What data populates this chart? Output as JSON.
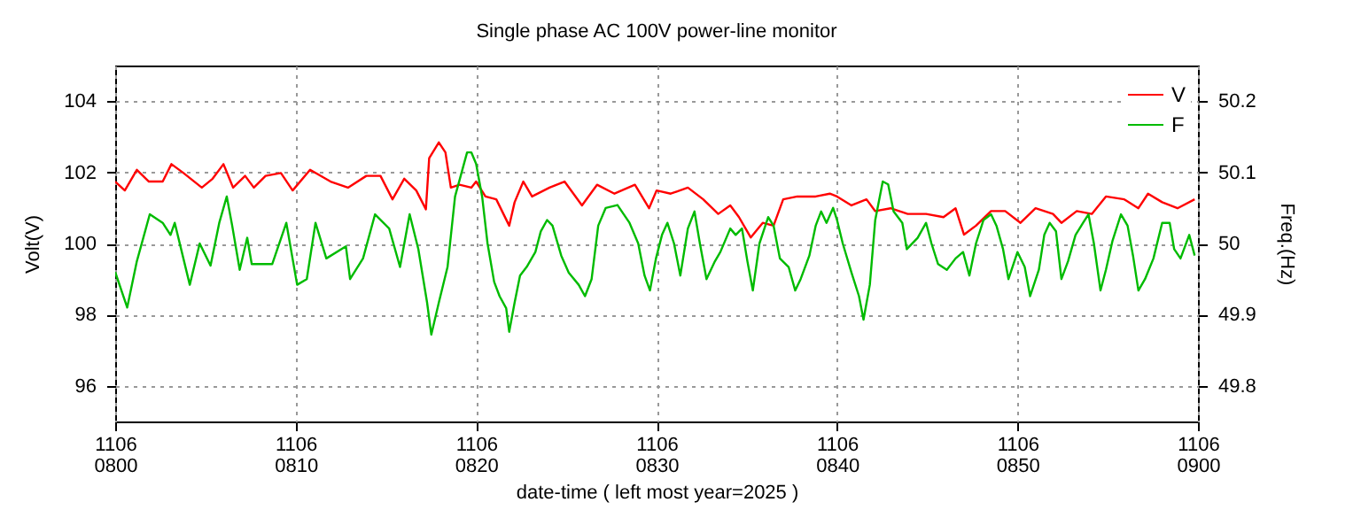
{
  "chart_data": {
    "type": "line",
    "title": "Single phase AC 100V power-line monitor",
    "xlabel": "date-time ( left most year=2025 )",
    "ylabel": "Volt(V)",
    "y2label": "Freq.(Hz)",
    "xlim": [
      "2025-11-06T08:00",
      "2025-11-06T09:00"
    ],
    "xticks": [
      {
        "value": "2025-11-06T08:00",
        "label": "1106\n0800"
      },
      {
        "value": "2025-11-06T08:10",
        "label": "1106\n0810"
      },
      {
        "value": "2025-11-06T08:20",
        "label": "1106\n0820"
      },
      {
        "value": "2025-11-06T08:30",
        "label": "1106\n0830"
      },
      {
        "value": "2025-11-06T08:40",
        "label": "1106\n0840"
      },
      {
        "value": "2025-11-06T08:50",
        "label": "1106\n0850"
      },
      {
        "value": "2025-11-06T09:00",
        "label": "1106\n0900"
      }
    ],
    "ylim": [
      95,
      105
    ],
    "yticks": [
      96,
      98,
      100,
      102,
      104
    ],
    "y2lim": [
      49.75,
      50.25
    ],
    "y2ticks": [
      49.8,
      49.9,
      50,
      50.1,
      50.2
    ],
    "grid": true,
    "legend": "top right",
    "series": [
      {
        "name": "V",
        "color": "#ff0000",
        "x": [
          "2025-11-06T08:00:00",
          "2025-11-06T08:00:32",
          "2025-11-06T08:01:12",
          "2025-11-06T08:01:52",
          "2025-11-06T08:02:38",
          "2025-11-06T08:03:07",
          "2025-11-06T08:03:47",
          "2025-11-06T08:04:48",
          "2025-11-06T08:05:24",
          "2025-11-06T08:06:00",
          "2025-11-06T08:06:32",
          "2025-11-06T08:07:12",
          "2025-11-06T08:07:41",
          "2025-11-06T08:08:20",
          "2025-11-06T08:09:11",
          "2025-11-06T08:09:50",
          "2025-11-06T08:10:48",
          "2025-11-06T08:11:56",
          "2025-11-06T08:12:54",
          "2025-11-06T08:13:55",
          "2025-11-06T08:14:42",
          "2025-11-06T08:15:22",
          "2025-11-06T08:16:01",
          "2025-11-06T08:16:41",
          "2025-11-06T08:17:13",
          "2025-11-06T08:17:24",
          "2025-11-06T08:17:56",
          "2025-11-06T08:18:18",
          "2025-11-06T08:18:36",
          "2025-11-06T08:19:05",
          "2025-11-06T08:19:44",
          "2025-11-06T08:20:00",
          "2025-11-06T08:20:31",
          "2025-11-06T08:21:07",
          "2025-11-06T08:21:50",
          "2025-11-06T08:22:08",
          "2025-11-06T08:22:37",
          "2025-11-06T08:23:06",
          "2025-11-06T08:24:04",
          "2025-11-06T08:24:54",
          "2025-11-06T08:25:52",
          "2025-11-06T08:26:42",
          "2025-11-06T08:27:40",
          "2025-11-06T08:28:48",
          "2025-11-06T08:29:35",
          "2025-11-06T08:30:00",
          "2025-11-06T08:30:47",
          "2025-11-06T08:31:44",
          "2025-11-06T08:32:35",
          "2025-11-06T08:33:25",
          "2025-11-06T08:34:05",
          "2025-11-06T08:34:34",
          "2025-11-06T08:35:13",
          "2025-11-06T08:35:53",
          "2025-11-06T08:36:29",
          "2025-11-06T08:37:01",
          "2025-11-06T08:37:48",
          "2025-11-06T08:38:49",
          "2025-11-06T08:39:36",
          "2025-11-06T08:40:00",
          "2025-11-06T08:40:48",
          "2025-11-06T08:41:38",
          "2025-11-06T08:42:07",
          "2025-11-06T08:42:58",
          "2025-11-06T08:43:55",
          "2025-11-06T08:44:56",
          "2025-11-06T08:45:54",
          "2025-11-06T08:46:34",
          "2025-11-06T08:47:02",
          "2025-11-06T08:47:42",
          "2025-11-06T08:48:32",
          "2025-11-06T08:49:19",
          "2025-11-06T08:50:10",
          "2025-11-06T08:51:00",
          "2025-11-06T08:51:58",
          "2025-11-06T08:52:26",
          "2025-11-06T08:53:17",
          "2025-11-06T08:54:07",
          "2025-11-06T08:54:54",
          "2025-11-06T08:55:55",
          "2025-11-06T08:56:42",
          "2025-11-06T08:57:14",
          "2025-11-06T08:58:01",
          "2025-11-06T08:58:52",
          "2025-11-06T08:59:49"
        ],
        "values": [
          101.74,
          101.49,
          102.07,
          101.74,
          101.74,
          102.23,
          101.98,
          101.57,
          101.82,
          102.23,
          101.57,
          101.9,
          101.57,
          101.9,
          101.98,
          101.49,
          102.07,
          101.74,
          101.57,
          101.9,
          101.9,
          101.24,
          101.82,
          101.49,
          100.96,
          102.4,
          102.84,
          102.56,
          101.57,
          101.65,
          101.57,
          101.74,
          101.32,
          101.24,
          100.5,
          101.16,
          101.74,
          101.32,
          101.57,
          101.74,
          101.07,
          101.65,
          101.4,
          101.65,
          100.99,
          101.49,
          101.4,
          101.57,
          101.24,
          100.83,
          101.07,
          100.74,
          100.17,
          100.58,
          100.5,
          101.24,
          101.32,
          101.32,
          101.4,
          101.32,
          101.07,
          101.24,
          100.91,
          100.99,
          100.83,
          100.83,
          100.74,
          100.99,
          100.25,
          100.5,
          100.91,
          100.91,
          100.58,
          100.99,
          100.83,
          100.58,
          100.91,
          100.83,
          101.32,
          101.24,
          100.99,
          101.4,
          101.16,
          100.99,
          101.24
        ]
      },
      {
        "name": "F",
        "color": "#00bb00",
        "axis": "y2",
        "x": [
          "2025-11-06T08:00:00",
          "2025-11-06T08:00:40",
          "2025-11-06T08:01:12",
          "2025-11-06T08:01:55",
          "2025-11-06T08:02:38",
          "2025-11-06T08:03:04",
          "2025-11-06T08:03:18",
          "2025-11-06T08:04:08",
          "2025-11-06T08:04:41",
          "2025-11-06T08:05:17",
          "2025-11-06T08:05:46",
          "2025-11-06T08:06:11",
          "2025-11-06T08:06:29",
          "2025-11-06T08:06:54",
          "2025-11-06T08:07:19",
          "2025-11-06T08:07:34",
          "2025-11-06T08:08:42",
          "2025-11-06T08:09:29",
          "2025-11-06T08:10:05",
          "2025-11-06T08:10:37",
          "2025-11-06T08:11:06",
          "2025-11-06T08:11:42",
          "2025-11-06T08:12:47",
          "2025-11-06T08:13:01",
          "2025-11-06T08:13:44",
          "2025-11-06T08:14:24",
          "2025-11-06T08:15:11",
          "2025-11-06T08:15:47",
          "2025-11-06T08:16:19",
          "2025-11-06T08:16:48",
          "2025-11-06T08:17:17",
          "2025-11-06T08:17:31",
          "2025-11-06T08:17:56",
          "2025-11-06T08:18:25",
          "2025-11-06T08:18:50",
          "2025-11-06T08:19:30",
          "2025-11-06T08:19:44",
          "2025-11-06T08:20:00",
          "2025-11-06T08:20:20",
          "2025-11-06T08:20:38",
          "2025-11-06T08:21:00",
          "2025-11-06T08:21:18",
          "2025-11-06T08:21:40",
          "2025-11-06T08:21:50",
          "2025-11-06T08:22:08",
          "2025-11-06T08:22:26",
          "2025-11-06T08:22:48",
          "2025-11-06T08:23:17",
          "2025-11-06T08:23:35",
          "2025-11-06T08:23:56",
          "2025-11-06T08:24:14",
          "2025-11-06T08:24:43",
          "2025-11-06T08:25:08",
          "2025-11-06T08:25:41",
          "2025-11-06T08:26:02",
          "2025-11-06T08:26:24",
          "2025-11-06T08:26:46",
          "2025-11-06T08:27:11",
          "2025-11-06T08:27:50",
          "2025-11-06T08:28:30",
          "2025-11-06T08:28:59",
          "2025-11-06T08:29:20",
          "2025-11-06T08:29:38",
          "2025-11-06T08:29:58",
          "2025-11-06T08:30:18",
          "2025-11-06T08:30:36",
          "2025-11-06T08:30:58",
          "2025-11-06T08:31:19",
          "2025-11-06T08:31:44",
          "2025-11-06T08:32:06",
          "2025-11-06T08:32:24",
          "2025-11-06T08:32:46",
          "2025-11-06T08:33:14",
          "2025-11-06T08:33:32",
          "2025-11-06T08:34:05",
          "2025-11-06T08:34:23",
          "2025-11-06T08:34:44",
          "2025-11-06T08:35:02",
          "2025-11-06T08:35:20",
          "2025-11-06T08:35:42",
          "2025-11-06T08:36:11",
          "2025-11-06T08:36:29",
          "2025-11-06T08:36:50",
          "2025-11-06T08:37:19",
          "2025-11-06T08:37:41",
          "2025-11-06T08:37:59",
          "2025-11-06T08:38:28",
          "2025-11-06T08:38:49",
          "2025-11-06T08:39:07",
          "2025-11-06T08:39:25",
          "2025-11-06T08:39:47",
          "2025-11-06T08:40:00",
          "2025-11-06T08:40:19",
          "2025-11-06T08:40:48",
          "2025-11-06T08:41:13",
          "2025-11-06T08:41:28",
          "2025-11-06T08:41:49",
          "2025-11-06T08:42:07",
          "2025-11-06T08:42:32",
          "2025-11-06T08:42:50",
          "2025-11-06T08:43:08",
          "2025-11-06T08:43:37",
          "2025-11-06T08:43:52",
          "2025-11-06T08:44:28",
          "2025-11-06T08:44:56",
          "2025-11-06T08:45:14",
          "2025-11-06T08:45:36",
          "2025-11-06T08:46:05",
          "2025-11-06T08:46:34",
          "2025-11-06T08:46:59",
          "2025-11-06T08:47:20",
          "2025-11-06T08:47:42",
          "2025-11-06T08:48:07",
          "2025-11-06T08:48:32",
          "2025-11-06T08:48:50",
          "2025-11-06T08:49:12",
          "2025-11-06T08:49:30",
          "2025-11-06T08:50:00",
          "2025-11-06T08:50:24",
          "2025-11-06T08:50:42",
          "2025-11-06T08:51:11",
          "2025-11-06T08:51:29",
          "2025-11-06T08:51:47",
          "2025-11-06T08:52:08",
          "2025-11-06T08:52:26",
          "2025-11-06T08:52:48",
          "2025-11-06T08:53:13",
          "2025-11-06T08:53:38",
          "2025-11-06T08:53:56",
          "2025-11-06T08:54:14",
          "2025-11-06T08:54:36",
          "2025-11-06T08:54:54",
          "2025-11-06T08:55:16",
          "2025-11-06T08:55:44",
          "2025-11-06T08:56:06",
          "2025-11-06T08:56:24",
          "2025-11-06T08:56:42",
          "2025-11-06T08:57:04",
          "2025-11-06T08:57:32",
          "2025-11-06T08:58:01",
          "2025-11-06T08:58:26",
          "2025-11-06T08:58:41",
          "2025-11-06T08:59:02",
          "2025-11-06T08:59:31",
          "2025-11-06T08:59:49"
        ],
        "values": [
          49.96,
          49.91,
          49.975,
          50.041,
          50.029,
          50.012,
          50.029,
          49.942,
          50.0,
          49.969,
          50.029,
          50.066,
          50.025,
          49.963,
          50.008,
          49.971,
          49.971,
          50.029,
          49.942,
          49.95,
          50.029,
          49.979,
          49.996,
          49.95,
          49.979,
          50.041,
          50.021,
          49.967,
          50.041,
          49.992,
          49.917,
          49.872,
          49.917,
          49.967,
          50.066,
          50.128,
          50.128,
          50.112,
          50.066,
          50.0,
          49.946,
          49.926,
          49.909,
          49.876,
          49.917,
          49.955,
          49.967,
          49.988,
          50.017,
          50.033,
          50.025,
          49.983,
          49.959,
          49.942,
          49.926,
          49.95,
          50.025,
          50.05,
          50.054,
          50.029,
          50.0,
          49.955,
          49.934,
          49.979,
          50.012,
          50.029,
          50.0,
          49.955,
          50.021,
          50.045,
          50.0,
          49.95,
          49.975,
          49.988,
          50.021,
          50.012,
          50.021,
          49.975,
          49.934,
          50.0,
          50.037,
          50.025,
          49.979,
          49.967,
          49.934,
          49.95,
          49.983,
          50.025,
          50.045,
          50.029,
          50.05,
          50.033,
          50.0,
          49.959,
          49.926,
          49.893,
          49.942,
          50.033,
          50.087,
          50.083,
          50.045,
          50.029,
          49.992,
          50.008,
          50.029,
          50.0,
          49.971,
          49.963,
          49.979,
          49.988,
          49.955,
          50.0,
          50.033,
          50.041,
          50.025,
          49.992,
          49.95,
          49.988,
          49.967,
          49.926,
          49.963,
          50.012,
          50.029,
          50.017,
          49.95,
          49.975,
          50.012,
          50.029,
          50.041,
          50.0,
          49.934,
          49.963,
          50.004,
          50.041,
          50.025,
          49.983,
          49.934,
          49.95,
          49.979,
          50.029,
          50.029,
          49.992,
          49.979,
          50.012,
          49.983
        ]
      }
    ]
  }
}
